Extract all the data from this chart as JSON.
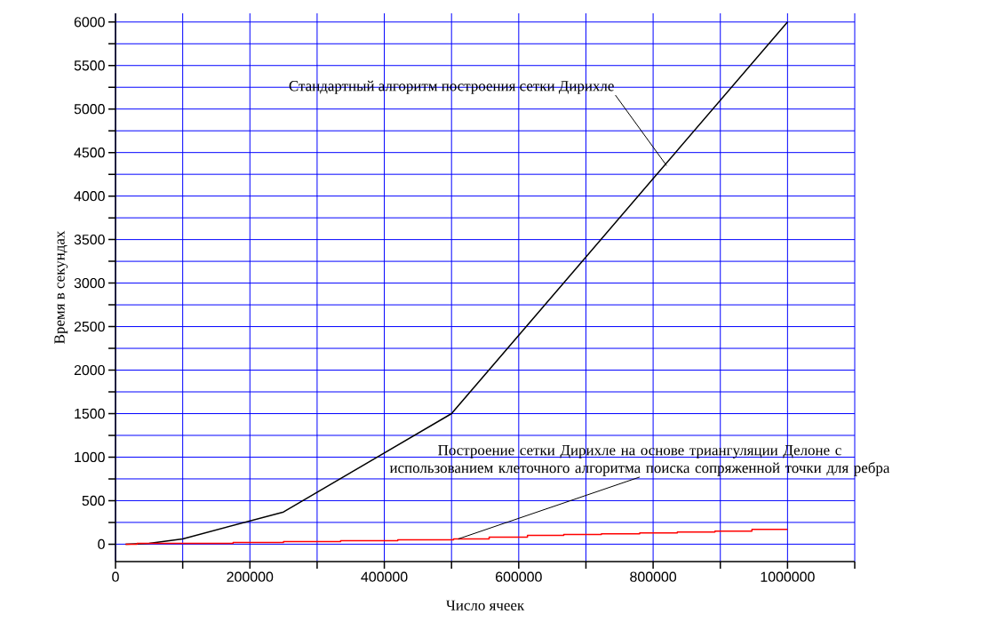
{
  "chart_data": {
    "type": "line",
    "xlabel": "Число ячеек",
    "ylabel": "Время в секундах",
    "series": [
      {
        "color": "#000000",
        "x": [
          15000,
          50000,
          100000,
          250000,
          500000,
          600000,
          700000,
          800000,
          900000,
          1000000
        ],
        "values": [
          0,
          10,
          60,
          370,
          1500,
          2400,
          3300,
          4200,
          5100,
          6000
        ]
      },
      {
        "type": "step",
        "color": "#ff0000",
        "x": [
          15000,
          32000,
          175000,
          250000,
          335000,
          420000,
          503000,
          556000,
          613000,
          667000,
          723000,
          780000,
          836000,
          892000,
          947000,
          1000000
        ],
        "values": [
          0,
          10,
          20,
          30,
          40,
          50,
          60,
          80,
          100,
          110,
          120,
          130,
          140,
          150,
          170,
          170
        ]
      }
    ],
    "xlim": [
      0,
      1100000
    ],
    "ylim": [
      -200,
      6100
    ],
    "xticks": [
      0,
      {
        "value": 100000,
        "label": null
      },
      200000,
      {
        "value": 300000,
        "label": null
      },
      400000,
      {
        "value": 500000,
        "label": null
      },
      600000,
      {
        "value": 700000,
        "label": null
      },
      800000,
      {
        "value": 900000,
        "label": null
      },
      1000000,
      {
        "value": 1100000,
        "label": null
      }
    ],
    "yticks": [
      0,
      {
        "value": 250,
        "label": null
      },
      500,
      {
        "value": 750,
        "label": null
      },
      1000,
      {
        "value": 1250,
        "label": null
      },
      1500,
      {
        "value": 1750,
        "label": null
      },
      2000,
      {
        "value": 2250,
        "label": null
      },
      2500,
      {
        "value": 2750,
        "label": null
      },
      3000,
      {
        "value": 3250,
        "label": null
      },
      3500,
      {
        "value": 3750,
        "label": null
      },
      4000,
      {
        "value": 4250,
        "label": null
      },
      4500,
      {
        "value": 4750,
        "label": null
      },
      5000,
      {
        "value": 5250,
        "label": null
      },
      5500,
      {
        "value": 5750,
        "label": null
      },
      6000
    ],
    "grid": true,
    "annotations": [
      {
        "text": "Стандартный алгоритм построения сетки Дирихле",
        "x": 820000,
        "y": 4350
      },
      {
        "text": "Построение сетки Дирихле на основе триангуляции Делоне с использованием клеточного алгоритма поиска сопряженной точки для ребра",
        "x": 510000,
        "y": 60
      }
    ]
  }
}
